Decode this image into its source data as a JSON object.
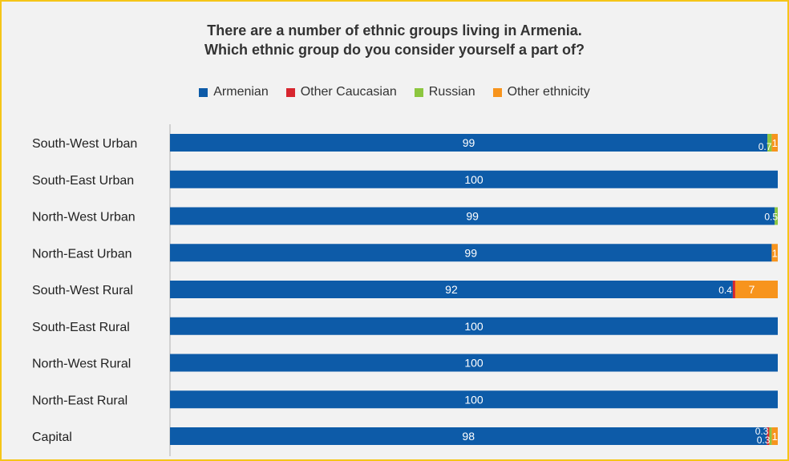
{
  "chart_data": {
    "type": "bar",
    "orientation": "horizontal",
    "stacked": true,
    "title_lines": [
      "There are a number of ethnic groups living in Armenia.",
      "Which ethnic group do you consider yourself a part of?"
    ],
    "legend_position": "top",
    "grid": false,
    "xlim": [
      0,
      100
    ],
    "categories": [
      "South-West Urban",
      "South-East Urban",
      "North-West Urban",
      "North-East Urban",
      "South-West Rural",
      "South-East Rural",
      "North-West Rural",
      "North-East Rural",
      "Capital"
    ],
    "series": [
      {
        "name": "Armenian",
        "color": "#0d5ba8",
        "values": [
          99,
          100,
          99,
          99,
          92,
          100,
          100,
          100,
          98
        ],
        "labels": [
          "99",
          "100",
          "99",
          "99",
          "92",
          "100",
          "100",
          "100",
          "98"
        ]
      },
      {
        "name": "Other Caucasian",
        "color": "#d7262f",
        "values": [
          0,
          0,
          0,
          0,
          0.4,
          0,
          0,
          0,
          0.3
        ],
        "labels": [
          "",
          "",
          "",
          "",
          "0.4",
          "",
          "",
          "",
          "0.3"
        ]
      },
      {
        "name": "Russian",
        "color": "#8cc63f",
        "values": [
          0.7,
          0,
          0.5,
          0,
          0,
          0,
          0,
          0,
          0.3
        ],
        "labels": [
          "0.7",
          "",
          "0.5",
          "",
          "",
          "",
          "",
          "",
          "0.3"
        ]
      },
      {
        "name": "Other ethnicity",
        "color": "#f7941d",
        "values": [
          1,
          0,
          0,
          1,
          7,
          0,
          0,
          0,
          1
        ],
        "labels": [
          "1",
          "",
          "",
          "1",
          "7",
          "",
          "",
          "",
          "1"
        ]
      }
    ]
  }
}
